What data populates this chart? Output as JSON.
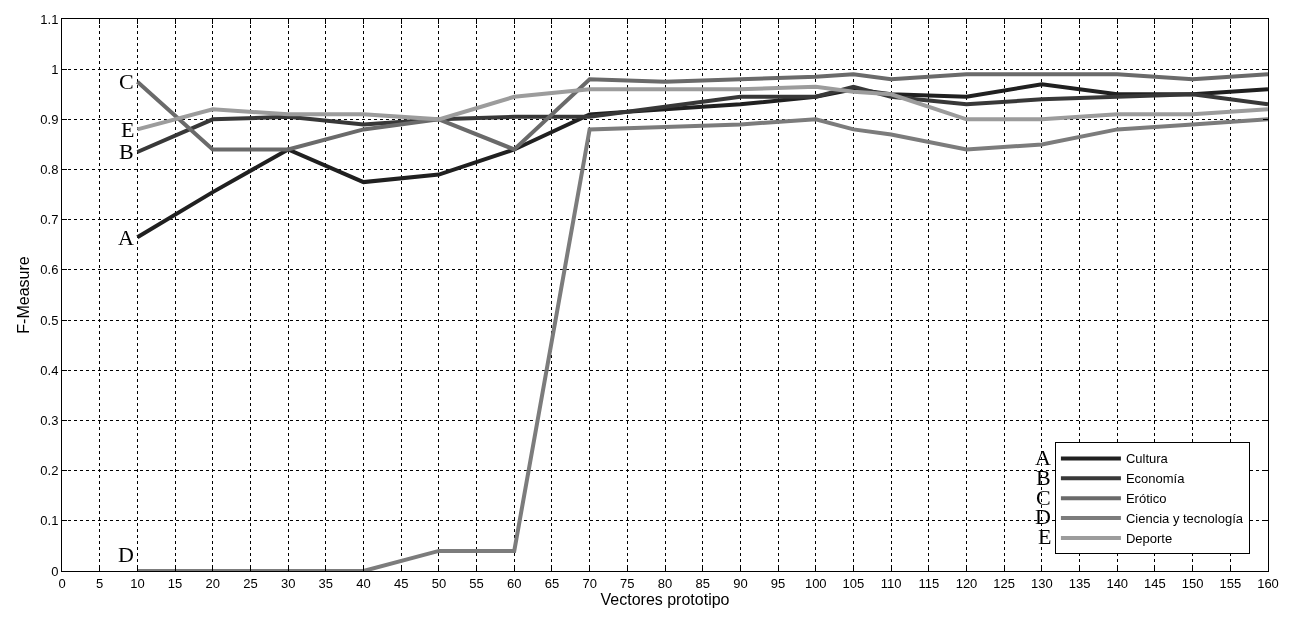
{
  "chart_data": {
    "type": "line",
    "xlabel": "Vectores prototipo",
    "ylabel": "F-Measure",
    "x": [
      10,
      20,
      30,
      40,
      50,
      60,
      70,
      80,
      90,
      100,
      105,
      110,
      120,
      130,
      140,
      150,
      160
    ],
    "series": [
      {
        "name": "Cultura",
        "color": "#202020",
        "values": [
          0.665,
          0.755,
          0.84,
          0.775,
          0.79,
          0.84,
          0.91,
          0.92,
          0.93,
          0.945,
          0.96,
          0.95,
          0.945,
          0.97,
          0.95,
          0.95,
          0.96
        ]
      },
      {
        "name": "Economía",
        "color": "#383838",
        "values": [
          0.835,
          0.9,
          0.905,
          0.89,
          0.9,
          0.905,
          0.905,
          0.925,
          0.945,
          0.945,
          0.965,
          0.945,
          0.93,
          0.94,
          0.945,
          0.95,
          0.93
        ]
      },
      {
        "name": "Erótico",
        "color": "#6a6a6a",
        "values": [
          0.975,
          0.84,
          0.84,
          0.88,
          0.9,
          0.84,
          0.98,
          0.975,
          0.98,
          0.985,
          0.99,
          0.98,
          0.99,
          0.99,
          0.99,
          0.98,
          0.99
        ]
      },
      {
        "name": "Ciencia y tecnología",
        "color": "#7c7c7c",
        "values": [
          0,
          0,
          0,
          0,
          0.04,
          0.04,
          0.88,
          0.885,
          0.89,
          0.9,
          0.88,
          0.87,
          0.84,
          0.85,
          0.88,
          0.89,
          0.9
        ]
      },
      {
        "name": "Deporte",
        "color": "#9c9c9c",
        "values": [
          0.88,
          0.92,
          0.91,
          0.91,
          0.9,
          0.945,
          0.96,
          0.96,
          0.96,
          0.965,
          0.955,
          0.95,
          0.9,
          0.9,
          0.91,
          0.91,
          0.92
        ]
      }
    ],
    "annotations": [
      "A",
      "B",
      "C",
      "D",
      "E",
      "A",
      "B",
      "C",
      "D",
      "E"
    ],
    "xlim": [
      0,
      160
    ],
    "xticks": [
      0,
      5,
      10,
      15,
      20,
      25,
      30,
      35,
      40,
      45,
      50,
      55,
      60,
      65,
      70,
      75,
      80,
      85,
      90,
      95,
      100,
      105,
      110,
      115,
      120,
      125,
      130,
      135,
      140,
      145,
      150,
      155,
      160
    ],
    "ylim": [
      0,
      1.1
    ],
    "yticks": [
      0,
      0.1,
      0.2,
      0.3,
      0.4,
      0.5,
      0.6,
      0.7,
      0.8,
      0.9,
      1,
      1.1
    ],
    "grid": true,
    "legend": "bottom right",
    "marker": "none",
    "line_style": "solid"
  }
}
